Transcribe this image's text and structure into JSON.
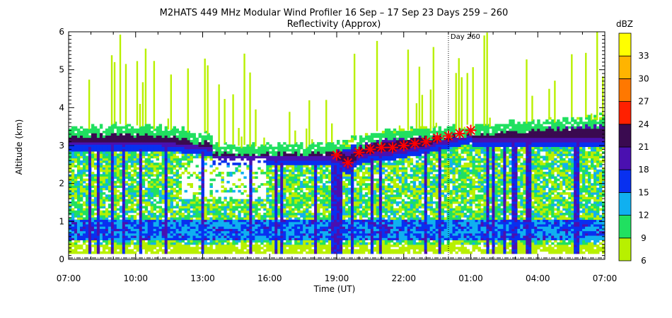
{
  "chart_data": {
    "type": "heatmap",
    "title": "M2HATS 449 MHz Modular Wind Profiler  16 Sep – 17 Sep 23 Days 259 – 260",
    "subtitle": "Reflectivity (Approx)",
    "xlabel": "Time (UT)",
    "ylabel": "Altitude (km)",
    "x_ticks": [
      "07:00",
      "10:00",
      "13:00",
      "16:00",
      "19:00",
      "22:00",
      "01:00",
      "04:00",
      "07:00"
    ],
    "x_range_hours": [
      0,
      24
    ],
    "ylim": [
      0,
      6
    ],
    "y_ticks": [
      "0",
      "1",
      "2",
      "3",
      "4",
      "5",
      "6"
    ],
    "annotation": {
      "label": "Day 260",
      "x_hours": 17
    },
    "colorbar": {
      "label": "dBZ",
      "ticks": [
        "6",
        "9",
        "12",
        "15",
        "18",
        "21",
        "24",
        "27",
        "30",
        "33"
      ],
      "levels": [
        6,
        9,
        12,
        15,
        18,
        21,
        24,
        27,
        30,
        33,
        36
      ],
      "colors": [
        "#b8f000",
        "#20e060",
        "#10b0f0",
        "#0830f0",
        "#4a10b0",
        "#3a0a50",
        "#ff2000",
        "#ff7800",
        "#ffb400",
        "#ffff00"
      ]
    },
    "markers": {
      "symbol": "asterisk",
      "color": "#ff0000",
      "points": [
        {
          "x": 12.0,
          "y": 2.75
        },
        {
          "x": 12.5,
          "y": 2.55
        },
        {
          "x": 13.0,
          "y": 2.82
        },
        {
          "x": 13.5,
          "y": 2.9
        },
        {
          "x": 14.0,
          "y": 2.95
        },
        {
          "x": 14.5,
          "y": 2.95
        },
        {
          "x": 15.0,
          "y": 3.0
        },
        {
          "x": 15.5,
          "y": 3.05
        },
        {
          "x": 16.0,
          "y": 3.1
        },
        {
          "x": 16.5,
          "y": 3.2
        },
        {
          "x": 17.0,
          "y": 3.25
        },
        {
          "x": 17.5,
          "y": 3.32
        },
        {
          "x": 18.0,
          "y": 3.4
        }
      ]
    },
    "regimes": [
      {
        "x0": 0,
        "x1": 6.5,
        "top": 3.5,
        "bright_band": 3.2
      },
      {
        "x0": 6.5,
        "x1": 11.7,
        "top": 3.0,
        "bright_band": 2.8
      },
      {
        "x0": 11.7,
        "x1": 24,
        "top": 3.7,
        "bright_band": 3.1
      }
    ]
  }
}
